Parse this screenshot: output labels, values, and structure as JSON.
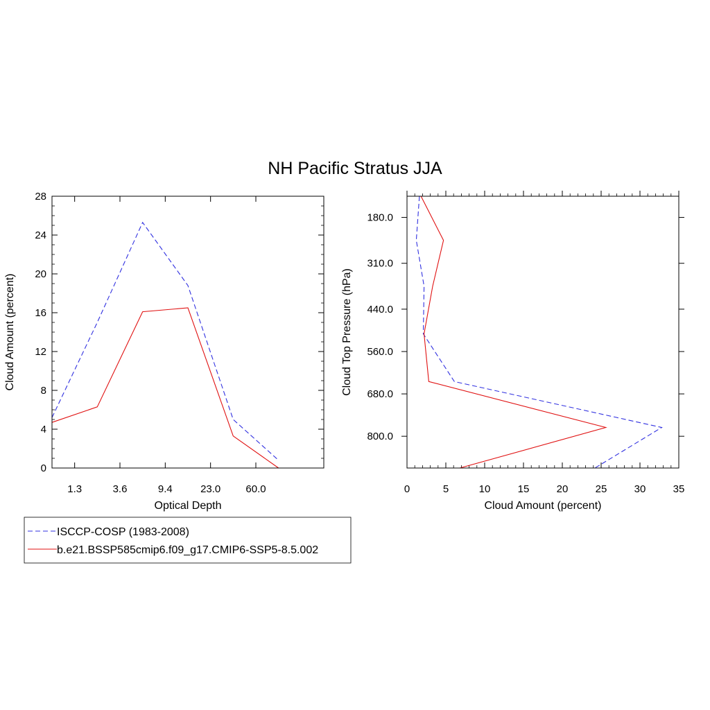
{
  "title": "NH Pacific Stratus JJA",
  "legend": {
    "items": [
      {
        "label": "ISCCP-COSP (1983-2008)",
        "color": "#3030e0",
        "style": "dashed"
      },
      {
        "label": "b.e21.BSSP585cmip6.f09_g17.CMIP6-SSP5-8.5.002",
        "color": "#e01010",
        "style": "solid"
      }
    ]
  },
  "chart_data": [
    {
      "type": "line",
      "xlabel": "Optical Depth",
      "ylabel": "Cloud Amount (percent)",
      "x_index": [
        0,
        1,
        2,
        3,
        4,
        5,
        6
      ],
      "categories": [
        "1.3",
        "3.6",
        "9.4",
        "23.0",
        "60.0"
      ],
      "category_positions": [
        0.5,
        1.5,
        2.5,
        3.5,
        4.5
      ],
      "xlim": [
        0,
        6
      ],
      "ylim": [
        0,
        28
      ],
      "yticks": [
        0,
        4,
        8,
        12,
        16,
        20,
        24,
        28
      ],
      "series": [
        {
          "name": "ISCCP-COSP (1983-2008)",
          "x": [
            0,
            1,
            2,
            3,
            4,
            5
          ],
          "values": [
            5.2,
            15.0,
            25.3,
            18.8,
            5.0,
            0.8
          ]
        },
        {
          "name": "b.e21.BSSP585cmip6.f09_g17.CMIP6-SSP5-8.5.002",
          "x": [
            0,
            1,
            2,
            3,
            4,
            5
          ],
          "values": [
            4.7,
            6.3,
            16.1,
            16.5,
            3.3,
            0.0
          ]
        }
      ]
    },
    {
      "type": "line",
      "orientation": "horizontal",
      "xlabel": "Cloud Amount (percent)",
      "ylabel": "Cloud Top Pressure (hPa)",
      "xlim": [
        0,
        35
      ],
      "xticks": [
        0,
        5,
        10,
        15,
        20,
        25,
        30,
        35
      ],
      "ylim": [
        120,
        890
      ],
      "yticks": [
        "180.0",
        "310.0",
        "440.0",
        "560.0",
        "680.0",
        "800.0"
      ],
      "ytick_values": [
        180,
        310,
        440,
        560,
        680,
        800
      ],
      "series": [
        {
          "name": "ISCCP-COSP (1983-2008)",
          "pressure": [
            120,
            245,
            375,
            510,
            645,
            775,
            890
          ],
          "values": [
            1.6,
            1.2,
            2.2,
            2.1,
            6.1,
            32.8,
            24.2
          ]
        },
        {
          "name": "b.e21.BSSP585cmip6.f09_g17.CMIP6-SSP5-8.5.002",
          "pressure": [
            120,
            245,
            375,
            510,
            645,
            775,
            890
          ],
          "values": [
            1.8,
            4.7,
            3.3,
            2.2,
            2.8,
            25.6,
            6.8
          ]
        }
      ]
    }
  ]
}
